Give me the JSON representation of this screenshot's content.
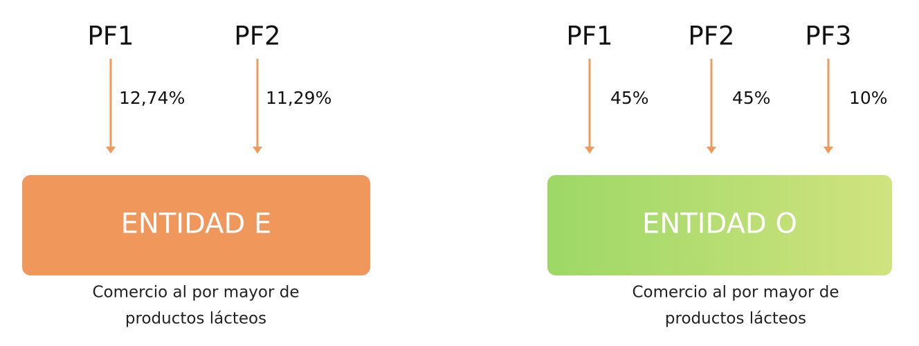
{
  "diagrams": [
    {
      "owners": [
        {
          "label": "PF1",
          "share": "12,74%"
        },
        {
          "label": "PF2",
          "share": "11,29%"
        }
      ],
      "entity": "ENTIDAD E",
      "description": [
        "Comercio al por mayor de",
        "productos lácteos"
      ]
    },
    {
      "owners": [
        {
          "label": "PF1",
          "share": "45%"
        },
        {
          "label": "PF2",
          "share": "45%"
        },
        {
          "label": "PF3",
          "share": "10%"
        }
      ],
      "entity": "ENTIDAD O",
      "description": [
        "Comercio al por mayor de",
        "productos lácteos"
      ]
    }
  ]
}
